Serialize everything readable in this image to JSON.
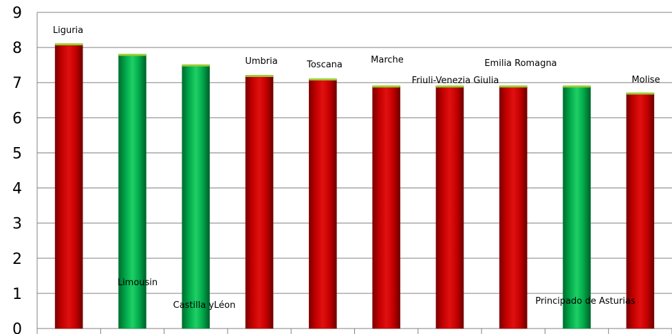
{
  "chart_data": {
    "type": "bar",
    "ylim": [
      0,
      9
    ],
    "y_ticks": [
      "0",
      "1",
      "2",
      "3",
      "4",
      "5",
      "6",
      "7",
      "8",
      "9"
    ],
    "grid": true,
    "categories": [
      "Liguria",
      "Limousin",
      "Castilla yLéon",
      "Umbria",
      "Toscana",
      "Marche",
      "Friuli-Venezia Giulia",
      "Emilia Romagna",
      "Principado de Asturias",
      "Molise"
    ],
    "values": [
      8.1,
      7.8,
      7.5,
      7.2,
      7.1,
      6.9,
      6.9,
      6.9,
      6.9,
      6.7
    ],
    "bar_colors": [
      "#cc0000",
      "#00b050",
      "#00b050",
      "#cc0000",
      "#cc0000",
      "#cc0000",
      "#cc0000",
      "#cc0000",
      "#00b050",
      "#cc0000"
    ],
    "colors": {
      "red": "#cc0000",
      "green": "#00b050",
      "grid": "#808080",
      "cap": "#9acd32"
    }
  }
}
